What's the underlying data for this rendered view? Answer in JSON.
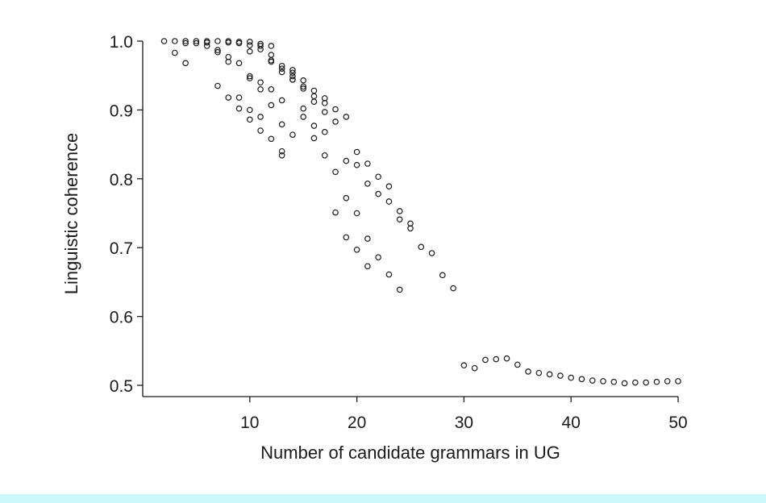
{
  "chart_data": {
    "type": "scatter",
    "title": "",
    "xlabel": "Number of candidate grammars in UG",
    "ylabel": "Linguistic coherence",
    "xlim": [
      0,
      50
    ],
    "ylim": [
      0.49,
      1.0
    ],
    "xticks": [
      10,
      20,
      30,
      40,
      50
    ],
    "xtick_labels": [
      "10",
      "20",
      "30",
      "40",
      "50"
    ],
    "yticks": [
      0.5,
      0.6,
      0.7,
      0.8,
      0.9,
      1.0
    ],
    "ytick_labels": [
      "0.5",
      "0.6",
      "0.7",
      "0.8",
      "0.9",
      "1.0"
    ],
    "grid": false,
    "marker": "small open circle",
    "color": "#1a1a1a",
    "points": [
      [
        2,
        1.0
      ],
      [
        3,
        1.0
      ],
      [
        3,
        0.983
      ],
      [
        4,
        1.0
      ],
      [
        4,
        0.997
      ],
      [
        4,
        0.968
      ],
      [
        5,
        1.0
      ],
      [
        5,
        0.997
      ],
      [
        6,
        1.0
      ],
      [
        6,
        0.998
      ],
      [
        6,
        0.993
      ],
      [
        7,
        1.0
      ],
      [
        7,
        0.987
      ],
      [
        7,
        0.984
      ],
      [
        7,
        0.935
      ],
      [
        8,
        1.0
      ],
      [
        8,
        0.998
      ],
      [
        8,
        0.977
      ],
      [
        8,
        0.97
      ],
      [
        8,
        0.918
      ],
      [
        9,
        0.999
      ],
      [
        9,
        0.997
      ],
      [
        9,
        0.968
      ],
      [
        9,
        0.918
      ],
      [
        9,
        0.902
      ],
      [
        10,
        0.999
      ],
      [
        10,
        0.994
      ],
      [
        10,
        0.985
      ],
      [
        10,
        0.949
      ],
      [
        10,
        0.946
      ],
      [
        10,
        0.9
      ],
      [
        10,
        0.886
      ],
      [
        11,
        0.996
      ],
      [
        11,
        0.993
      ],
      [
        11,
        0.988
      ],
      [
        11,
        0.94
      ],
      [
        11,
        0.93
      ],
      [
        11,
        0.89
      ],
      [
        11,
        0.87
      ],
      [
        12,
        0.993
      ],
      [
        12,
        0.98
      ],
      [
        12,
        0.972
      ],
      [
        12,
        0.97
      ],
      [
        12,
        0.93
      ],
      [
        12,
        0.907
      ],
      [
        12,
        0.858
      ],
      [
        13,
        0.964
      ],
      [
        13,
        0.96
      ],
      [
        13,
        0.955
      ],
      [
        13,
        0.914
      ],
      [
        13,
        0.879
      ],
      [
        13,
        0.84
      ],
      [
        13,
        0.834
      ],
      [
        14,
        0.958
      ],
      [
        14,
        0.954
      ],
      [
        14,
        0.949
      ],
      [
        14,
        0.944
      ],
      [
        14,
        0.944
      ],
      [
        14,
        0.864
      ],
      [
        15,
        0.943
      ],
      [
        15,
        0.934
      ],
      [
        15,
        0.931
      ],
      [
        15,
        0.902
      ],
      [
        15,
        0.89
      ],
      [
        16,
        0.928
      ],
      [
        16,
        0.92
      ],
      [
        16,
        0.912
      ],
      [
        16,
        0.877
      ],
      [
        16,
        0.859
      ],
      [
        17,
        0.917
      ],
      [
        17,
        0.91
      ],
      [
        17,
        0.897
      ],
      [
        17,
        0.868
      ],
      [
        17,
        0.834
      ],
      [
        18,
        0.901
      ],
      [
        18,
        0.883
      ],
      [
        18,
        0.81
      ],
      [
        18,
        0.751
      ],
      [
        19,
        0.89
      ],
      [
        19,
        0.826
      ],
      [
        19,
        0.772
      ],
      [
        19,
        0.715
      ],
      [
        20,
        0.839
      ],
      [
        20,
        0.82
      ],
      [
        20,
        0.75
      ],
      [
        20,
        0.697
      ],
      [
        21,
        0.822
      ],
      [
        21,
        0.793
      ],
      [
        21,
        0.713
      ],
      [
        21,
        0.673
      ],
      [
        22,
        0.803
      ],
      [
        22,
        0.778
      ],
      [
        22,
        0.686
      ],
      [
        23,
        0.789
      ],
      [
        23,
        0.767
      ],
      [
        23,
        0.661
      ],
      [
        24,
        0.753
      ],
      [
        24,
        0.741
      ],
      [
        24,
        0.639
      ],
      [
        25,
        0.735
      ],
      [
        25,
        0.728
      ],
      [
        26,
        0.701
      ],
      [
        27,
        0.692
      ],
      [
        28,
        0.66
      ],
      [
        29,
        0.641
      ],
      [
        30,
        0.529
      ],
      [
        31,
        0.525
      ],
      [
        32,
        0.537
      ],
      [
        33,
        0.538
      ],
      [
        34,
        0.539
      ],
      [
        35,
        0.53
      ],
      [
        36,
        0.52
      ],
      [
        37,
        0.518
      ],
      [
        38,
        0.516
      ],
      [
        39,
        0.514
      ],
      [
        40,
        0.511
      ],
      [
        41,
        0.509
      ],
      [
        42,
        0.507
      ],
      [
        43,
        0.506
      ],
      [
        44,
        0.505
      ],
      [
        45,
        0.503
      ],
      [
        46,
        0.504
      ],
      [
        47,
        0.504
      ],
      [
        48,
        0.505
      ],
      [
        49,
        0.506
      ],
      [
        50,
        0.506
      ]
    ]
  }
}
